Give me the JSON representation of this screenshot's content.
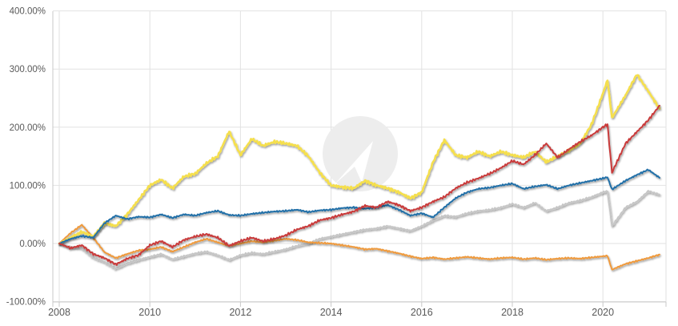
{
  "chart": {
    "background": "#ffffff",
    "grid_color": "#e2e2e2",
    "axis_color": "#c8c8c8",
    "label_color": "#595959",
    "watermark_color": "#ededed",
    "watermark_arrow_color": "#ffffff",
    "y_axis": {
      "tick_labels": [
        "400.00%",
        "300.00%",
        "200.00%",
        "100.00%",
        "0.00%",
        "-100.00%"
      ],
      "tick_values": [
        400,
        300,
        200,
        100,
        0,
        -100
      ]
    },
    "x_axis": {
      "tick_labels": [
        "2008",
        "2010",
        "2012",
        "2014",
        "2016",
        "2018",
        "2020"
      ],
      "tick_values": [
        2008,
        2010,
        2012,
        2014,
        2016,
        2018,
        2020
      ]
    }
  },
  "chart_data": {
    "type": "line",
    "title": "",
    "xlabel": "",
    "ylabel": "",
    "ylim": [
      -100,
      400
    ],
    "xlim": [
      2008,
      2021.3
    ],
    "grid": true,
    "legend": "none",
    "x": [
      2008.0,
      2008.25,
      2008.5,
      2008.75,
      2009.0,
      2009.25,
      2009.5,
      2009.75,
      2010.0,
      2010.25,
      2010.5,
      2010.75,
      2011.0,
      2011.25,
      2011.5,
      2011.75,
      2012.0,
      2012.25,
      2012.5,
      2012.75,
      2013.0,
      2013.25,
      2013.5,
      2013.75,
      2014.0,
      2014.25,
      2014.5,
      2014.75,
      2015.0,
      2015.25,
      2015.5,
      2015.75,
      2016.0,
      2016.25,
      2016.5,
      2016.75,
      2017.0,
      2017.25,
      2017.5,
      2017.75,
      2018.0,
      2018.25,
      2018.5,
      2018.75,
      2019.0,
      2019.25,
      2019.5,
      2019.75,
      2020.0,
      2020.1,
      2020.2,
      2020.5,
      2020.75,
      2021.0,
      2021.25
    ],
    "series": [
      {
        "name": "gray-series",
        "color": "#c6c6c6",
        "width": 2,
        "amp": 1.8,
        "values": [
          0,
          -6,
          -8,
          -24,
          -32,
          -43,
          -34,
          -28,
          -23,
          -18,
          -27,
          -22,
          -17,
          -14,
          -20,
          -28,
          -20,
          -16,
          -18,
          -14,
          -10,
          -4,
          0,
          8,
          12,
          16,
          20,
          24,
          26,
          30,
          26,
          22,
          30,
          40,
          48,
          46,
          52,
          56,
          58,
          62,
          68,
          62,
          70,
          56,
          62,
          70,
          74,
          80,
          88,
          90,
          30,
          62,
          72,
          90,
          84
        ]
      },
      {
        "name": "orange-series",
        "color": "#ef9a3d",
        "width": 2,
        "amp": 1.5,
        "values": [
          0,
          18,
          32,
          10,
          -15,
          -25,
          -18,
          -12,
          -10,
          -6,
          -14,
          -6,
          2,
          8,
          2,
          -4,
          0,
          4,
          2,
          5,
          8,
          6,
          2,
          1,
          0,
          -3,
          -6,
          -10,
          -9,
          -13,
          -17,
          -22,
          -26,
          -24,
          -27,
          -25,
          -23,
          -25,
          -27,
          -25,
          -24,
          -27,
          -25,
          -28,
          -26,
          -25,
          -26,
          -24,
          -22,
          -21,
          -45,
          -35,
          -30,
          -25,
          -19
        ]
      },
      {
        "name": "yellow-series",
        "color": "#f5df4d",
        "width": 2.6,
        "amp": 3.0,
        "values": [
          0,
          10,
          20,
          12,
          35,
          30,
          50,
          75,
          100,
          110,
          95,
          115,
          120,
          138,
          150,
          193,
          152,
          180,
          168,
          175,
          172,
          168,
          150,
          122,
          100,
          97,
          95,
          108,
          100,
          95,
          88,
          78,
          88,
          140,
          178,
          152,
          148,
          158,
          150,
          158,
          152,
          148,
          158,
          140,
          150,
          160,
          172,
          205,
          258,
          281,
          216,
          255,
          291,
          262,
          232
        ]
      },
      {
        "name": "blue-series",
        "color": "#2270a8",
        "width": 2,
        "amp": 1.6,
        "values": [
          0,
          8,
          13,
          10,
          35,
          48,
          42,
          46,
          45,
          50,
          44,
          50,
          48,
          53,
          56,
          49,
          48,
          51,
          53,
          55,
          56,
          58,
          54,
          57,
          58,
          61,
          62,
          60,
          62,
          66,
          58,
          48,
          52,
          45,
          62,
          78,
          88,
          94,
          96,
          100,
          103,
          94,
          98,
          101,
          94,
          100,
          104,
          108,
          112,
          114,
          93,
          108,
          118,
          127,
          113
        ]
      },
      {
        "name": "red-series",
        "color": "#c93a3a",
        "width": 2,
        "amp": 2.4,
        "values": [
          0,
          -8,
          -3,
          -18,
          -25,
          -36,
          -26,
          -20,
          -3,
          4,
          -6,
          6,
          12,
          16,
          10,
          -4,
          4,
          10,
          4,
          8,
          14,
          24,
          30,
          40,
          44,
          50,
          55,
          65,
          62,
          72,
          66,
          56,
          62,
          72,
          80,
          95,
          105,
          112,
          120,
          130,
          142,
          136,
          152,
          172,
          148,
          162,
          175,
          186,
          200,
          205,
          122,
          172,
          192,
          212,
          237
        ]
      }
    ]
  }
}
